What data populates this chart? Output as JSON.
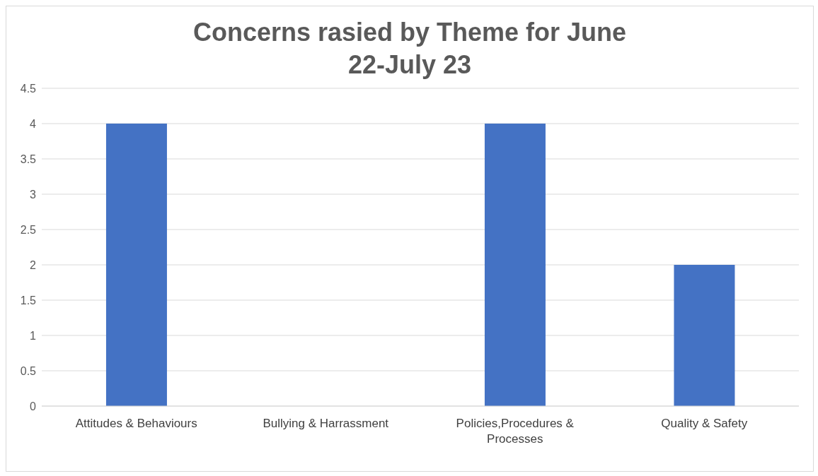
{
  "chart_data": {
    "type": "bar",
    "title": "Concerns rasied by Theme for June 22-July 23",
    "categories": [
      "Attitudes & Behaviours",
      "Bullying & Harrassment",
      "Policies,Procedures & Processes",
      "Quality & Safety"
    ],
    "values": [
      4,
      0,
      4,
      2
    ],
    "color": "#4472c4",
    "ylim": [
      0,
      4.5
    ],
    "yticks": [
      0,
      0.5,
      1,
      1.5,
      2,
      2.5,
      3,
      3.5,
      4,
      4.5
    ],
    "grid": "y",
    "legend": false
  }
}
